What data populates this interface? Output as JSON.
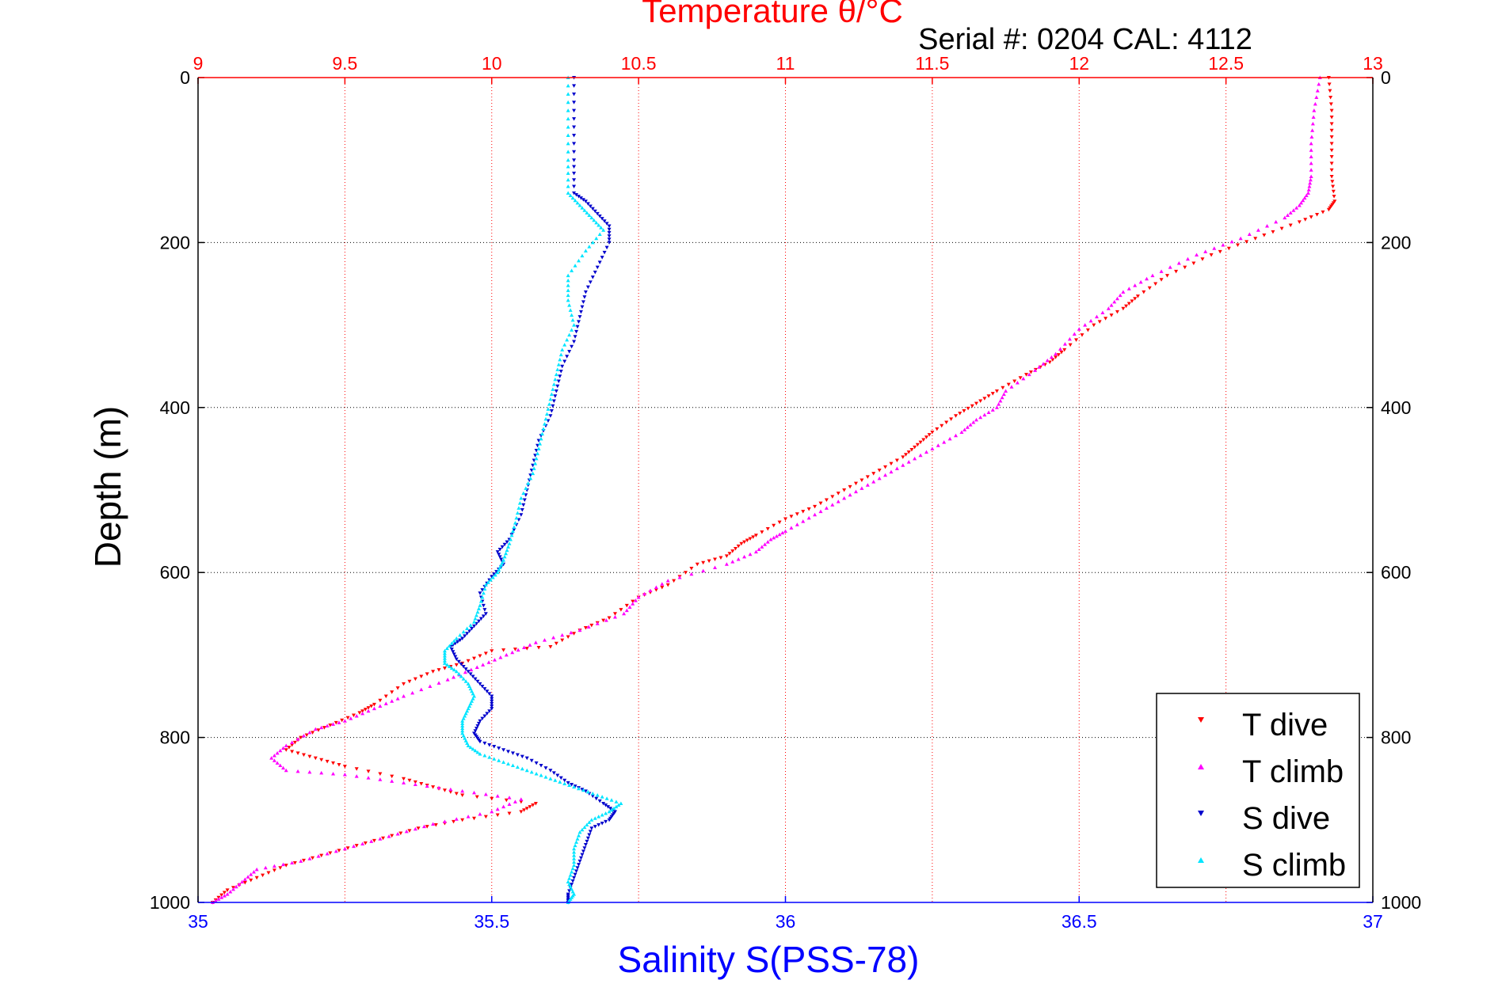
{
  "chart_data": {
    "type": "scatter",
    "title": "Temperature θ/°C",
    "subtitle": "Serial #: 0204  CAL: 4112",
    "xlabel_bottom": "Salinity S(PSS-78)",
    "xlabel_top": "Temperature θ/°C",
    "ylabel": "Depth (m)",
    "salinity_range": [
      35,
      37
    ],
    "temperature_range": [
      9,
      13
    ],
    "depth_range": [
      0,
      1000
    ],
    "depth_reversed": true,
    "grid": true,
    "legend_position": "bottom-right",
    "salinity_ticks": [
      "35",
      "35.5",
      "36",
      "36.5",
      "37"
    ],
    "temperature_ticks": [
      "9",
      "9.5",
      "10",
      "10.5",
      "11",
      "11.5",
      "12",
      "12.5",
      "13"
    ],
    "depth_ticks": [
      "0",
      "200",
      "400",
      "600",
      "800",
      "1000"
    ],
    "colors": {
      "t_dive": "#ff0000",
      "t_climb": "#ff00ff",
      "s_dive": "#0000cc",
      "s_climb": "#00e5ff",
      "salinity_axis": "#0000ff",
      "temperature_axis": "#ff0000"
    },
    "series": [
      {
        "name": "T dive",
        "axis": "temperature",
        "marker": "triangle-down",
        "color": "#ff0000",
        "points": [
          [
            12.85,
            0
          ],
          [
            12.86,
            40
          ],
          [
            12.86,
            80
          ],
          [
            12.86,
            120
          ],
          [
            12.87,
            150
          ],
          [
            12.85,
            160
          ],
          [
            12.75,
            175
          ],
          [
            12.6,
            195
          ],
          [
            12.45,
            215
          ],
          [
            12.3,
            240
          ],
          [
            12.2,
            265
          ],
          [
            12.15,
            280
          ],
          [
            12.05,
            300
          ],
          [
            11.95,
            330
          ],
          [
            11.9,
            345
          ],
          [
            11.82,
            360
          ],
          [
            11.72,
            380
          ],
          [
            11.65,
            395
          ],
          [
            11.58,
            410
          ],
          [
            11.5,
            430
          ],
          [
            11.45,
            445
          ],
          [
            11.4,
            460
          ],
          [
            11.3,
            480
          ],
          [
            11.2,
            500
          ],
          [
            11.1,
            520
          ],
          [
            11.0,
            535
          ],
          [
            10.9,
            555
          ],
          [
            10.85,
            565
          ],
          [
            10.8,
            580
          ],
          [
            10.7,
            590
          ],
          [
            10.6,
            615
          ],
          [
            10.5,
            630
          ],
          [
            10.4,
            655
          ],
          [
            10.3,
            670
          ],
          [
            10.2,
            690
          ],
          [
            10.0,
            695
          ],
          [
            9.9,
            710
          ],
          [
            9.8,
            720
          ],
          [
            9.7,
            735
          ],
          [
            9.6,
            760
          ],
          [
            9.55,
            770
          ],
          [
            9.45,
            785
          ],
          [
            9.35,
            800
          ],
          [
            9.3,
            815
          ],
          [
            9.4,
            825
          ],
          [
            9.5,
            835
          ],
          [
            9.7,
            850
          ],
          [
            9.8,
            860
          ],
          [
            9.9,
            870
          ],
          [
            10.15,
            880
          ],
          [
            10.1,
            890
          ],
          [
            9.9,
            900
          ],
          [
            9.75,
            910
          ],
          [
            9.6,
            925
          ],
          [
            9.45,
            940
          ],
          [
            9.3,
            955
          ],
          [
            9.2,
            970
          ],
          [
            9.1,
            985
          ],
          [
            9.05,
            1000
          ]
        ]
      },
      {
        "name": "T climb",
        "axis": "temperature",
        "marker": "triangle-up",
        "color": "#ff00ff",
        "points": [
          [
            12.82,
            0
          ],
          [
            12.8,
            40
          ],
          [
            12.79,
            80
          ],
          [
            12.79,
            120
          ],
          [
            12.78,
            140
          ],
          [
            12.75,
            155
          ],
          [
            12.7,
            170
          ],
          [
            12.55,
            195
          ],
          [
            12.4,
            215
          ],
          [
            12.25,
            240
          ],
          [
            12.15,
            260
          ],
          [
            12.1,
            280
          ],
          [
            12.0,
            305
          ],
          [
            11.92,
            335
          ],
          [
            11.85,
            355
          ],
          [
            11.75,
            380
          ],
          [
            11.72,
            400
          ],
          [
            11.65,
            415
          ],
          [
            11.6,
            430
          ],
          [
            11.5,
            450
          ],
          [
            11.4,
            470
          ],
          [
            11.3,
            490
          ],
          [
            11.2,
            510
          ],
          [
            11.1,
            530
          ],
          [
            11.0,
            550
          ],
          [
            10.95,
            560
          ],
          [
            10.9,
            575
          ],
          [
            10.8,
            590
          ],
          [
            10.6,
            610
          ],
          [
            10.5,
            630
          ],
          [
            10.45,
            650
          ],
          [
            10.3,
            670
          ],
          [
            10.15,
            685
          ],
          [
            10.05,
            700
          ],
          [
            9.95,
            715
          ],
          [
            9.85,
            730
          ],
          [
            9.7,
            750
          ],
          [
            9.6,
            765
          ],
          [
            9.5,
            780
          ],
          [
            9.4,
            790
          ],
          [
            9.3,
            810
          ],
          [
            9.25,
            825
          ],
          [
            9.3,
            840
          ],
          [
            9.5,
            845
          ],
          [
            9.7,
            855
          ],
          [
            9.9,
            865
          ],
          [
            10.1,
            875
          ],
          [
            10.0,
            890
          ],
          [
            9.8,
            905
          ],
          [
            9.65,
            920
          ],
          [
            9.5,
            935
          ],
          [
            9.35,
            950
          ],
          [
            9.2,
            960
          ],
          [
            9.15,
            975
          ],
          [
            9.1,
            990
          ],
          [
            9.05,
            1000
          ]
        ]
      },
      {
        "name": "S dive",
        "axis": "salinity",
        "marker": "triangle-down",
        "color": "#0000cc",
        "points": [
          [
            35.64,
            0
          ],
          [
            35.64,
            50
          ],
          [
            35.64,
            100
          ],
          [
            35.64,
            140
          ],
          [
            35.66,
            150
          ],
          [
            35.68,
            165
          ],
          [
            35.7,
            180
          ],
          [
            35.7,
            200
          ],
          [
            35.68,
            230
          ],
          [
            35.66,
            260
          ],
          [
            35.65,
            290
          ],
          [
            35.64,
            320
          ],
          [
            35.62,
            350
          ],
          [
            35.61,
            380
          ],
          [
            35.6,
            410
          ],
          [
            35.58,
            440
          ],
          [
            35.57,
            470
          ],
          [
            35.56,
            500
          ],
          [
            35.55,
            530
          ],
          [
            35.53,
            560
          ],
          [
            35.51,
            575
          ],
          [
            35.52,
            590
          ],
          [
            35.5,
            605
          ],
          [
            35.48,
            625
          ],
          [
            35.49,
            650
          ],
          [
            35.47,
            665
          ],
          [
            35.45,
            680
          ],
          [
            35.43,
            690
          ],
          [
            35.44,
            705
          ],
          [
            35.46,
            720
          ],
          [
            35.48,
            735
          ],
          [
            35.5,
            750
          ],
          [
            35.5,
            765
          ],
          [
            35.48,
            780
          ],
          [
            35.47,
            795
          ],
          [
            35.48,
            805
          ],
          [
            35.52,
            815
          ],
          [
            35.56,
            825
          ],
          [
            35.6,
            840
          ],
          [
            35.63,
            855
          ],
          [
            35.66,
            865
          ],
          [
            35.69,
            880
          ],
          [
            35.71,
            890
          ],
          [
            35.7,
            900
          ],
          [
            35.67,
            910
          ],
          [
            35.66,
            930
          ],
          [
            35.65,
            950
          ],
          [
            35.64,
            970
          ],
          [
            35.63,
            990
          ],
          [
            35.63,
            1000
          ]
        ]
      },
      {
        "name": "S climb",
        "axis": "salinity",
        "marker": "triangle-up",
        "color": "#00e5ff",
        "points": [
          [
            35.63,
            0
          ],
          [
            35.63,
            50
          ],
          [
            35.63,
            100
          ],
          [
            35.63,
            140
          ],
          [
            35.65,
            155
          ],
          [
            35.67,
            170
          ],
          [
            35.69,
            185
          ],
          [
            35.66,
            210
          ],
          [
            35.63,
            240
          ],
          [
            35.63,
            270
          ],
          [
            35.64,
            300
          ],
          [
            35.62,
            330
          ],
          [
            35.61,
            360
          ],
          [
            35.6,
            390
          ],
          [
            35.59,
            420
          ],
          [
            35.58,
            450
          ],
          [
            35.57,
            480
          ],
          [
            35.55,
            510
          ],
          [
            35.54,
            540
          ],
          [
            35.53,
            565
          ],
          [
            35.52,
            585
          ],
          [
            35.51,
            600
          ],
          [
            35.49,
            615
          ],
          [
            35.48,
            640
          ],
          [
            35.47,
            660
          ],
          [
            35.44,
            680
          ],
          [
            35.42,
            695
          ],
          [
            35.42,
            710
          ],
          [
            35.44,
            720
          ],
          [
            35.46,
            735
          ],
          [
            35.47,
            750
          ],
          [
            35.46,
            765
          ],
          [
            35.45,
            780
          ],
          [
            35.45,
            795
          ],
          [
            35.46,
            810
          ],
          [
            35.48,
            820
          ],
          [
            35.52,
            830
          ],
          [
            35.56,
            840
          ],
          [
            35.6,
            850
          ],
          [
            35.64,
            860
          ],
          [
            35.68,
            870
          ],
          [
            35.72,
            880
          ],
          [
            35.7,
            890
          ],
          [
            35.67,
            900
          ],
          [
            35.65,
            915
          ],
          [
            35.64,
            935
          ],
          [
            35.64,
            955
          ],
          [
            35.63,
            975
          ],
          [
            35.64,
            990
          ],
          [
            35.63,
            1000
          ]
        ]
      }
    ]
  }
}
